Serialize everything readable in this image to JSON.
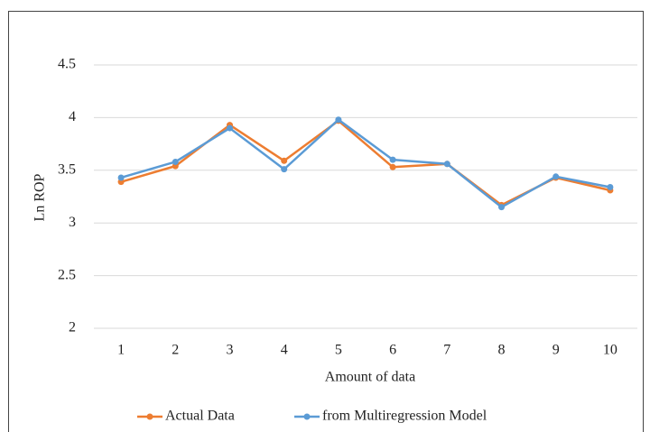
{
  "chart_data": {
    "type": "line",
    "x_label": "Amount of data",
    "y_label": "Ln ROP",
    "categories": [
      "1",
      "2",
      "3",
      "4",
      "5",
      "6",
      "7",
      "8",
      "9",
      "10"
    ],
    "series": [
      {
        "name": "Actual Data",
        "color": "#ed7d31",
        "values": [
          3.39,
          3.54,
          3.93,
          3.59,
          3.97,
          3.53,
          3.56,
          3.17,
          3.43,
          3.31
        ]
      },
      {
        "name": "from Multiregression Model",
        "color": "#5b9bd5",
        "values": [
          3.43,
          3.58,
          3.9,
          3.51,
          3.98,
          3.6,
          3.56,
          3.15,
          3.44,
          3.34
        ]
      }
    ],
    "ylim": [
      2,
      4.5
    ],
    "yticks": [
      2,
      2.5,
      3,
      3.5,
      4,
      4.5
    ],
    "grid": true,
    "legend": "bottom"
  }
}
